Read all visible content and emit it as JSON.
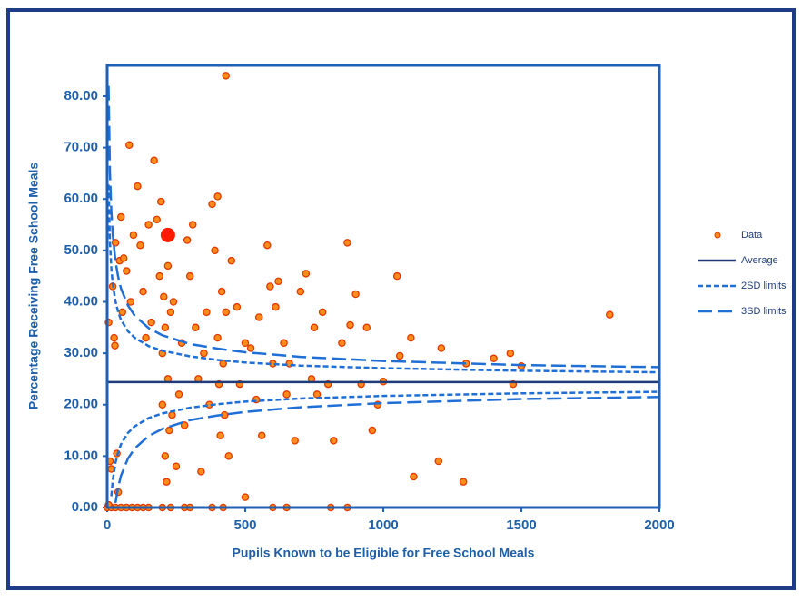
{
  "chart_data": {
    "type": "scatter",
    "xlabel": "Pupils Known to be Eligible  for Free School Meals",
    "ylabel": "Percentage Receiving  Free School Meals",
    "xlim": [
      0,
      2000
    ],
    "xticks": [
      0,
      500,
      1000,
      1500,
      2000
    ],
    "ylim": [
      0,
      86
    ],
    "yticks": [
      {
        "value": 0,
        "label": "0.00"
      },
      {
        "value": 10,
        "label": "10.00"
      },
      {
        "value": 20,
        "label": "20.00"
      },
      {
        "value": 30,
        "label": "30.00"
      },
      {
        "value": 40,
        "label": "40.00"
      },
      {
        "value": 50,
        "label": "50.00"
      },
      {
        "value": 60,
        "label": "60.00"
      },
      {
        "value": 70,
        "label": "70.00"
      },
      {
        "value": 80,
        "label": "80.00"
      }
    ],
    "legend": "right",
    "highlight": {
      "x": 220,
      "y": 53,
      "color": "#ff1a00"
    },
    "series": [
      {
        "name": "Data",
        "kind": "points",
        "color": "#ff8c1a",
        "x": [
          5,
          10,
          15,
          20,
          25,
          28,
          30,
          35,
          40,
          45,
          50,
          55,
          60,
          70,
          80,
          85,
          95,
          110,
          120,
          130,
          140,
          150,
          160,
          170,
          180,
          190,
          195,
          200,
          200,
          205,
          210,
          210,
          215,
          220,
          220,
          225,
          230,
          235,
          240,
          250,
          260,
          270,
          280,
          290,
          300,
          310,
          320,
          330,
          340,
          350,
          360,
          370,
          380,
          390,
          400,
          400,
          405,
          410,
          415,
          420,
          425,
          430,
          430,
          440,
          450,
          470,
          480,
          500,
          500,
          520,
          540,
          550,
          560,
          580,
          590,
          600,
          610,
          620,
          640,
          650,
          660,
          680,
          700,
          720,
          740,
          750,
          760,
          780,
          800,
          820,
          850,
          870,
          880,
          900,
          920,
          940,
          960,
          980,
          1000,
          1050,
          1060,
          1100,
          1110,
          1200,
          1210,
          1290,
          1300,
          1400,
          1460,
          1470,
          1500,
          1820,
          0,
          15,
          30,
          50,
          70,
          90,
          110,
          130,
          150,
          200,
          230,
          280,
          300,
          380,
          420,
          600,
          650,
          810,
          870,
          5
        ],
        "values": [
          36,
          9,
          7.5,
          43,
          33,
          31.5,
          51.5,
          10.5,
          3,
          48,
          56.5,
          38,
          48.5,
          46,
          70.5,
          40,
          53,
          62.5,
          51,
          42,
          33,
          55,
          36,
          67.5,
          56,
          45,
          59.5,
          30,
          20,
          41,
          35,
          10,
          5,
          25,
          47,
          15,
          38,
          18,
          40,
          8,
          22,
          32,
          16,
          52,
          45,
          55,
          35,
          25,
          7,
          30,
          38,
          20,
          59,
          50,
          60.5,
          33,
          24,
          14,
          42,
          28,
          18,
          84,
          38,
          10,
          48,
          39,
          24,
          2,
          32,
          31,
          21,
          37,
          14,
          51,
          43,
          28,
          39,
          44,
          32,
          22,
          28,
          13,
          42,
          45.5,
          25,
          35,
          22,
          38,
          24,
          13,
          32,
          51.5,
          35.5,
          41.5,
          24,
          35,
          15,
          20,
          24.5,
          45,
          29.5,
          33,
          6,
          9,
          31,
          5,
          28,
          29,
          30,
          24,
          27.5,
          37.5,
          0,
          0,
          0,
          0,
          0,
          0,
          0,
          0,
          0,
          0,
          0,
          0,
          0,
          0,
          0,
          0,
          0,
          0,
          0,
          0.5
        ]
      },
      {
        "name": "Average",
        "kind": "solid",
        "color": "#1f3c7a",
        "x": [
          0,
          2000
        ],
        "values": [
          24.4,
          24.4
        ]
      },
      {
        "name": "2SD limits",
        "kind": "short-dash",
        "color": "#1f6fd6",
        "x": [
          5,
          10,
          15,
          20,
          30,
          40,
          50,
          75,
          100,
          150,
          200,
          300,
          400,
          500,
          700,
          1000,
          1500,
          2000
        ],
        "values": [
          62.8,
          51.6,
          46.6,
          43.6,
          40.1,
          38.0,
          36.5,
          34.3,
          33.0,
          31.4,
          30.5,
          29.4,
          28.7,
          28.2,
          27.6,
          27.1,
          26.6,
          26.3
        ],
        "values_lower": [
          null,
          null,
          2.2,
          5.2,
          8.7,
          10.8,
          12.3,
          14.5,
          15.8,
          17.4,
          18.3,
          19.4,
          20.1,
          20.6,
          21.2,
          21.7,
          22.2,
          22.5
        ]
      },
      {
        "name": "3SD limits",
        "kind": "long-dash",
        "color": "#1f6fd6",
        "x": [
          5,
          10,
          15,
          20,
          30,
          40,
          50,
          75,
          100,
          150,
          200,
          300,
          400,
          500,
          700,
          1000,
          1500,
          2000
        ],
        "values": [
          82.0,
          65.1,
          57.7,
          53.2,
          47.9,
          44.8,
          42.6,
          39.3,
          37.3,
          34.9,
          33.5,
          31.8,
          30.9,
          30.2,
          29.3,
          28.5,
          27.7,
          27.3
        ],
        "values_lower": [
          null,
          null,
          null,
          null,
          0.9,
          4.0,
          6.2,
          9.5,
          11.5,
          13.9,
          15.3,
          17.0,
          17.9,
          18.6,
          19.5,
          20.3,
          21.1,
          21.5
        ]
      }
    ]
  }
}
